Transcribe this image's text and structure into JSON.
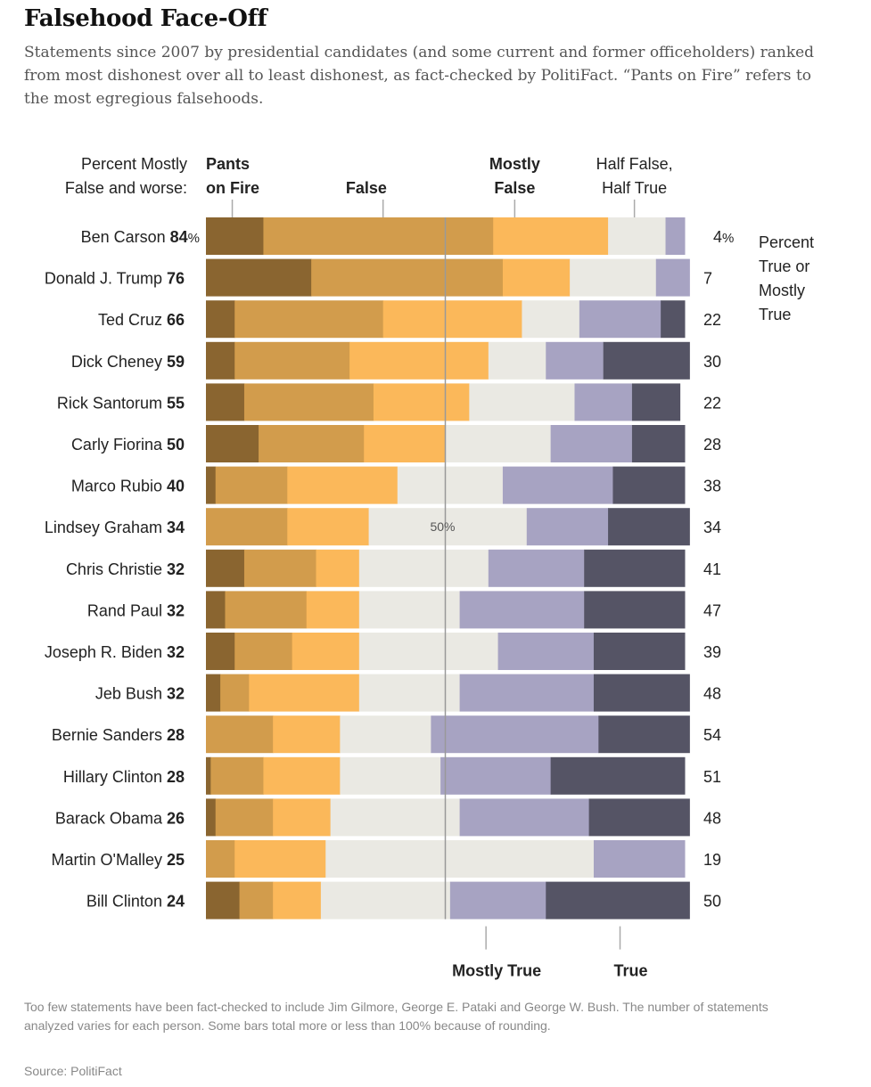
{
  "title": "Falsehood Face-Off",
  "subtitle": "Statements since 2007 by presidential candidates (and some current and former officeholders) ranked from most dishonest over all to least dishonest, as fact-checked by PolitiFact. “Pants on Fire” refers to the most egregious falsehoods.",
  "footnote": "Too few statements have been fact-checked to include Jim Gilmore, George E. Pataki and George W. Bush. The number of statements analyzed varies for each person. Some bars total more or less than 100% because of rounding.",
  "source": "Source: PolitiFact",
  "chart_data": {
    "type": "bar",
    "orientation": "horizontal-stacked",
    "left_header": [
      "Percent Mostly",
      "False and worse:"
    ],
    "right_header": [
      "Percent",
      "True or",
      "Mostly",
      "True"
    ],
    "midline_label": "50%",
    "midline_value": 50,
    "top_category_labels": [
      {
        "lines": [
          "Pants",
          "on Fire"
        ],
        "bold": true,
        "anchor": "start",
        "at": 2
      },
      {
        "lines": [
          "False"
        ],
        "bold": true,
        "anchor": "middle",
        "at": 33.5
      },
      {
        "lines": [
          "Mostly",
          "False"
        ],
        "bold": true,
        "anchor": "middle",
        "at": 64.5
      },
      {
        "lines": [
          "Half False,",
          "Half True"
        ],
        "bold": false,
        "anchor": "middle",
        "at": 89.5
      }
    ],
    "bottom_category_labels": [
      {
        "label": "Mostly True",
        "at": 58.5
      },
      {
        "label": "True",
        "at": 86.5
      }
    ],
    "categories": [
      "Pants on Fire",
      "False",
      "Mostly False",
      "Half True",
      "Mostly True",
      "True"
    ],
    "colors": {
      "pants_on_fire": "#8a6530",
      "false": "#d29c4c",
      "mostly_false": "#fbb85a",
      "half_true": "#eae9e3",
      "mostly_true": "#a7a3c2",
      "true": "#555465",
      "midline": "#999999",
      "label_text": "#222222"
    },
    "rows": [
      {
        "name": "Ben Carson",
        "false_and_worse": "84",
        "pct_suffix": "%",
        "true_and_mostly": "4",
        "true_suffix": "%",
        "values": [
          12,
          48,
          24,
          12,
          4,
          0
        ]
      },
      {
        "name": "Donald J. Trump",
        "false_and_worse": "76",
        "pct_suffix": "",
        "true_and_mostly": "7",
        "true_suffix": "",
        "values": [
          22,
          40,
          14,
          18,
          7,
          0
        ]
      },
      {
        "name": "Ted Cruz",
        "false_and_worse": "66",
        "pct_suffix": "",
        "true_and_mostly": "22",
        "true_suffix": "",
        "values": [
          6,
          31,
          29,
          12,
          17,
          5
        ]
      },
      {
        "name": "Dick Cheney",
        "false_and_worse": "59",
        "pct_suffix": "",
        "true_and_mostly": "30",
        "true_suffix": "",
        "values": [
          6,
          24,
          29,
          12,
          12,
          18
        ]
      },
      {
        "name": "Rick Santorum",
        "false_and_worse": "55",
        "pct_suffix": "",
        "true_and_mostly": "22",
        "true_suffix": "",
        "values": [
          8,
          27,
          20,
          22,
          12,
          10
        ]
      },
      {
        "name": "Carly Fiorina",
        "false_and_worse": "50",
        "pct_suffix": "",
        "true_and_mostly": "28",
        "true_suffix": "",
        "values": [
          11,
          22,
          17,
          22,
          17,
          11
        ]
      },
      {
        "name": "Marco Rubio",
        "false_and_worse": "40",
        "pct_suffix": "",
        "true_and_mostly": "38",
        "true_suffix": "",
        "values": [
          2,
          15,
          23,
          22,
          23,
          15
        ]
      },
      {
        "name": "Lindsey Graham",
        "false_and_worse": "34",
        "pct_suffix": "",
        "true_and_mostly": "34",
        "true_suffix": "",
        "values": [
          0,
          17,
          17,
          33,
          17,
          17
        ]
      },
      {
        "name": "Chris Christie",
        "false_and_worse": "32",
        "pct_suffix": "",
        "true_and_mostly": "41",
        "true_suffix": "",
        "values": [
          8,
          15,
          9,
          27,
          20,
          21
        ]
      },
      {
        "name": "Rand Paul",
        "false_and_worse": "32",
        "pct_suffix": "",
        "true_and_mostly": "47",
        "true_suffix": "",
        "values": [
          4,
          17,
          11,
          21,
          26,
          21
        ]
      },
      {
        "name": "Joseph R. Biden",
        "false_and_worse": "32",
        "pct_suffix": "",
        "true_and_mostly": "39",
        "true_suffix": "",
        "values": [
          6,
          12,
          14,
          29,
          20,
          19
        ]
      },
      {
        "name": "Jeb Bush",
        "false_and_worse": "32",
        "pct_suffix": "",
        "true_and_mostly": "48",
        "true_suffix": "",
        "values": [
          3,
          6,
          23,
          21,
          28,
          20
        ]
      },
      {
        "name": "Bernie Sanders",
        "false_and_worse": "28",
        "pct_suffix": "",
        "true_and_mostly": "54",
        "true_suffix": "",
        "values": [
          0,
          14,
          14,
          19,
          35,
          19
        ]
      },
      {
        "name": "Hillary Clinton",
        "false_and_worse": "28",
        "pct_suffix": "",
        "true_and_mostly": "51",
        "true_suffix": "",
        "values": [
          1,
          11,
          16,
          21,
          23,
          28
        ]
      },
      {
        "name": "Barack Obama",
        "false_and_worse": "26",
        "pct_suffix": "",
        "true_and_mostly": "48",
        "true_suffix": "",
        "values": [
          2,
          12,
          12,
          27,
          27,
          21
        ]
      },
      {
        "name": "Martin O'Malley",
        "false_and_worse": "25",
        "pct_suffix": "",
        "true_and_mostly": "19",
        "true_suffix": "",
        "values": [
          0,
          6,
          19,
          56,
          19,
          0
        ]
      },
      {
        "name": "Bill Clinton",
        "false_and_worse": "24",
        "pct_suffix": "",
        "true_and_mostly": "50",
        "true_suffix": "",
        "values": [
          7,
          7,
          10,
          27,
          20,
          30
        ]
      }
    ]
  }
}
